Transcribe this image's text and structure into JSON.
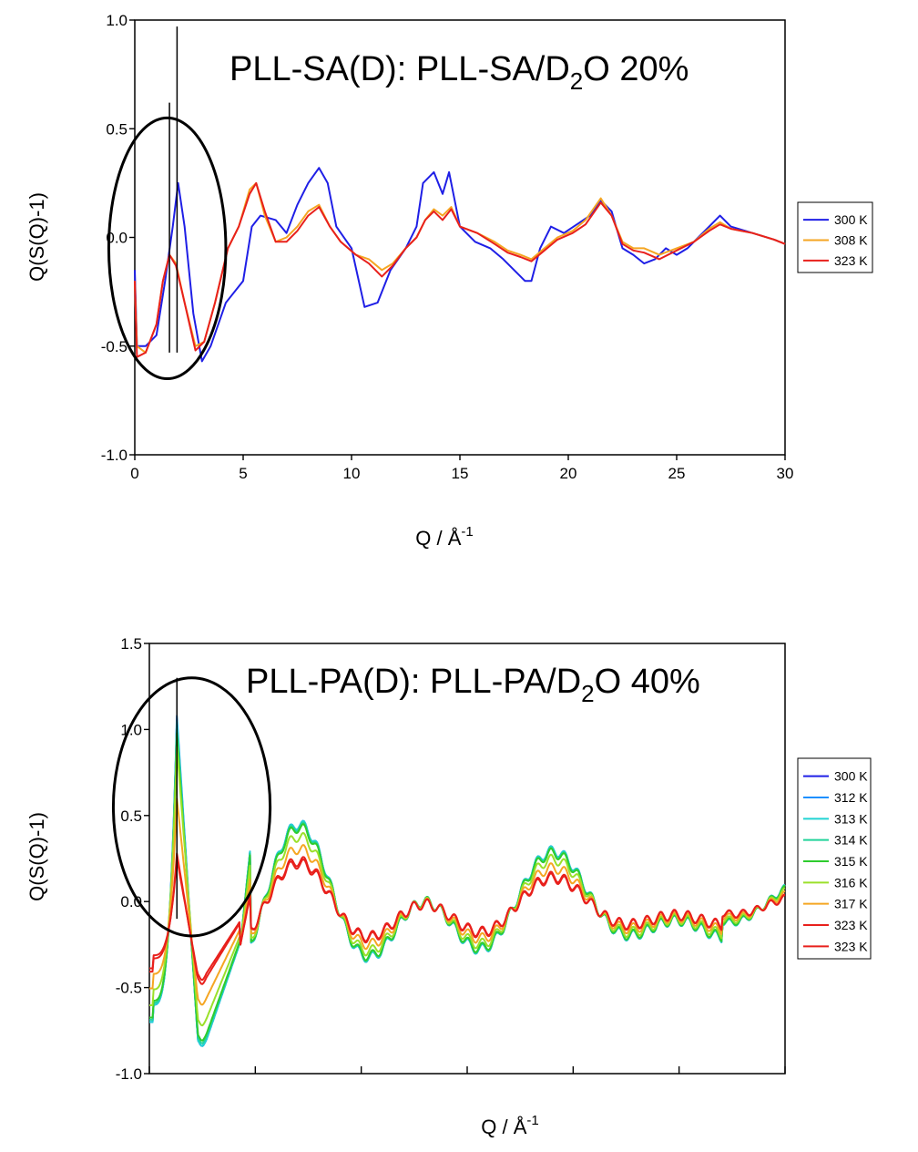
{
  "chart_data": [
    {
      "type": "line",
      "title_main": "PLL-SA(D): PLL-SA/D",
      "title_sub": "2",
      "title_tail": "O 20%",
      "xlabel": "Q / Å",
      "xlabel_sup": "-1",
      "ylabel": "Q(S(Q)-1)",
      "xlim": [
        0,
        30
      ],
      "ylim": [
        -1.0,
        1.0
      ],
      "xticks": [
        "0",
        "5",
        "10",
        "15",
        "20",
        "25",
        "30"
      ],
      "yticks": [
        "-1.0",
        "-0.5",
        "0.0",
        "0.5",
        "1.0"
      ],
      "legend_position": "right",
      "annotations": {
        "ellipse": {
          "cx": 1.5,
          "cy": -0.05,
          "rx": 2.7,
          "ry": 0.6
        },
        "vlines": [
          {
            "x": 1.6,
            "y0": -0.53,
            "y1": 0.62
          },
          {
            "x": 1.95,
            "y0": -0.53,
            "y1": 0.97
          }
        ]
      },
      "series": [
        {
          "name": "300 K",
          "color": "#1f1fe6",
          "points": [
            [
              0,
              -0.15
            ],
            [
              0.1,
              -0.5
            ],
            [
              0.5,
              -0.5
            ],
            [
              1.0,
              -0.45
            ],
            [
              1.4,
              -0.2
            ],
            [
              1.75,
              0.05
            ],
            [
              2.0,
              0.25
            ],
            [
              2.3,
              0.05
            ],
            [
              2.7,
              -0.35
            ],
            [
              3.1,
              -0.57
            ],
            [
              3.5,
              -0.5
            ],
            [
              4.2,
              -0.3
            ],
            [
              5.0,
              -0.2
            ],
            [
              5.4,
              0.05
            ],
            [
              5.8,
              0.1
            ],
            [
              6.5,
              0.08
            ],
            [
              7.0,
              0.02
            ],
            [
              7.5,
              0.15
            ],
            [
              8.0,
              0.25
            ],
            [
              8.5,
              0.32
            ],
            [
              8.9,
              0.25
            ],
            [
              9.3,
              0.05
            ],
            [
              10.0,
              -0.05
            ],
            [
              10.6,
              -0.32
            ],
            [
              11.2,
              -0.3
            ],
            [
              11.8,
              -0.15
            ],
            [
              12.5,
              -0.05
            ],
            [
              13.0,
              0.05
            ],
            [
              13.3,
              0.25
            ],
            [
              13.8,
              0.3
            ],
            [
              14.2,
              0.2
            ],
            [
              14.5,
              0.3
            ],
            [
              15.0,
              0.05
            ],
            [
              15.7,
              -0.02
            ],
            [
              16.4,
              -0.05
            ],
            [
              17.0,
              -0.1
            ],
            [
              17.5,
              -0.15
            ],
            [
              18.0,
              -0.2
            ],
            [
              18.3,
              -0.2
            ],
            [
              18.7,
              -0.05
            ],
            [
              19.2,
              0.05
            ],
            [
              19.8,
              0.02
            ],
            [
              20.4,
              0.06
            ],
            [
              21.0,
              0.1
            ],
            [
              21.5,
              0.17
            ],
            [
              22.0,
              0.12
            ],
            [
              22.5,
              -0.05
            ],
            [
              23.0,
              -0.08
            ],
            [
              23.5,
              -0.12
            ],
            [
              24.0,
              -0.1
            ],
            [
              24.5,
              -0.05
            ],
            [
              25.0,
              -0.08
            ],
            [
              25.5,
              -0.05
            ],
            [
              26.0,
              0.0
            ],
            [
              26.5,
              0.05
            ],
            [
              27.0,
              0.1
            ],
            [
              27.5,
              0.05
            ],
            [
              28.5,
              0.02
            ],
            [
              29.5,
              -0.01
            ],
            [
              30.0,
              -0.03
            ]
          ]
        },
        {
          "name": "308 K",
          "color": "#f5a623",
          "points": [
            [
              0,
              -0.2
            ],
            [
              0.1,
              -0.5
            ],
            [
              0.5,
              -0.53
            ],
            [
              1.0,
              -0.4
            ],
            [
              1.3,
              -0.2
            ],
            [
              1.6,
              -0.08
            ],
            [
              1.9,
              -0.12
            ],
            [
              2.3,
              -0.3
            ],
            [
              2.8,
              -0.5
            ],
            [
              3.2,
              -0.48
            ],
            [
              3.7,
              -0.3
            ],
            [
              4.3,
              -0.05
            ],
            [
              4.8,
              0.05
            ],
            [
              5.3,
              0.22
            ],
            [
              5.6,
              0.25
            ],
            [
              6.0,
              0.1
            ],
            [
              6.5,
              -0.02
            ],
            [
              7.0,
              0.0
            ],
            [
              7.5,
              0.05
            ],
            [
              8.0,
              0.12
            ],
            [
              8.5,
              0.15
            ],
            [
              9.0,
              0.05
            ],
            [
              9.5,
              -0.02
            ],
            [
              10.2,
              -0.08
            ],
            [
              10.8,
              -0.1
            ],
            [
              11.4,
              -0.15
            ],
            [
              11.9,
              -0.12
            ],
            [
              12.5,
              -0.05
            ],
            [
              13.0,
              0.0
            ],
            [
              13.4,
              0.08
            ],
            [
              13.8,
              0.13
            ],
            [
              14.2,
              0.1
            ],
            [
              14.6,
              0.14
            ],
            [
              15.0,
              0.05
            ],
            [
              15.8,
              0.02
            ],
            [
              16.6,
              -0.02
            ],
            [
              17.2,
              -0.06
            ],
            [
              17.8,
              -0.08
            ],
            [
              18.3,
              -0.1
            ],
            [
              18.9,
              -0.05
            ],
            [
              19.5,
              0.0
            ],
            [
              20.2,
              0.03
            ],
            [
              20.8,
              0.08
            ],
            [
              21.5,
              0.18
            ],
            [
              22.0,
              0.1
            ],
            [
              22.5,
              -0.02
            ],
            [
              23.0,
              -0.05
            ],
            [
              23.5,
              -0.05
            ],
            [
              24.2,
              -0.08
            ],
            [
              25.0,
              -0.05
            ],
            [
              25.8,
              -0.02
            ],
            [
              26.5,
              0.04
            ],
            [
              27.0,
              0.07
            ],
            [
              27.5,
              0.04
            ],
            [
              28.5,
              0.02
            ],
            [
              29.5,
              -0.01
            ],
            [
              30.0,
              -0.03
            ]
          ]
        },
        {
          "name": "323 K",
          "color": "#e8201c",
          "points": [
            [
              0,
              -0.2
            ],
            [
              0.1,
              -0.55
            ],
            [
              0.5,
              -0.53
            ],
            [
              1.0,
              -0.4
            ],
            [
              1.3,
              -0.2
            ],
            [
              1.6,
              -0.08
            ],
            [
              1.9,
              -0.13
            ],
            [
              2.3,
              -0.3
            ],
            [
              2.8,
              -0.52
            ],
            [
              3.2,
              -0.48
            ],
            [
              3.7,
              -0.3
            ],
            [
              4.3,
              -0.05
            ],
            [
              4.8,
              0.05
            ],
            [
              5.3,
              0.2
            ],
            [
              5.6,
              0.25
            ],
            [
              6.0,
              0.12
            ],
            [
              6.5,
              -0.02
            ],
            [
              7.0,
              -0.02
            ],
            [
              7.5,
              0.03
            ],
            [
              8.0,
              0.1
            ],
            [
              8.5,
              0.14
            ],
            [
              9.0,
              0.05
            ],
            [
              9.5,
              -0.02
            ],
            [
              10.2,
              -0.08
            ],
            [
              10.8,
              -0.12
            ],
            [
              11.4,
              -0.18
            ],
            [
              11.9,
              -0.13
            ],
            [
              12.5,
              -0.05
            ],
            [
              13.0,
              0.0
            ],
            [
              13.4,
              0.08
            ],
            [
              13.8,
              0.12
            ],
            [
              14.2,
              0.08
            ],
            [
              14.6,
              0.13
            ],
            [
              15.0,
              0.05
            ],
            [
              15.8,
              0.02
            ],
            [
              16.6,
              -0.03
            ],
            [
              17.2,
              -0.07
            ],
            [
              17.8,
              -0.09
            ],
            [
              18.3,
              -0.11
            ],
            [
              18.9,
              -0.06
            ],
            [
              19.5,
              -0.01
            ],
            [
              20.2,
              0.02
            ],
            [
              20.8,
              0.06
            ],
            [
              21.5,
              0.16
            ],
            [
              22.0,
              0.1
            ],
            [
              22.5,
              -0.03
            ],
            [
              23.0,
              -0.06
            ],
            [
              23.5,
              -0.07
            ],
            [
              24.2,
              -0.1
            ],
            [
              25.0,
              -0.06
            ],
            [
              25.8,
              -0.02
            ],
            [
              26.5,
              0.03
            ],
            [
              27.0,
              0.06
            ],
            [
              27.5,
              0.04
            ],
            [
              28.5,
              0.02
            ],
            [
              29.5,
              -0.01
            ],
            [
              30.0,
              -0.03
            ]
          ]
        }
      ]
    },
    {
      "type": "line",
      "title_main": "PLL-PA(D): PLL-PA/D",
      "title_sub": "2",
      "title_tail": "O 40%",
      "xlabel": "Q / Å",
      "xlabel_sup": "-1",
      "ylabel": "Q(S(Q)-1)",
      "xlim": [
        0,
        30
      ],
      "ylim": [
        -1.0,
        1.5
      ],
      "xticks": [],
      "xtick_positions": [
        0,
        5,
        10,
        15,
        20,
        25,
        30
      ],
      "yticks": [
        "-1.0",
        "-0.5",
        "0.0",
        "0.5",
        "1.0",
        "1.5"
      ],
      "legend_position": "right",
      "annotations": {
        "ellipse": {
          "cx": 2.0,
          "cy": 0.55,
          "rx": 3.7,
          "ry": 0.75
        },
        "vlines": [
          {
            "x": 1.3,
            "y0": -0.1,
            "y1": 1.3
          }
        ]
      },
      "series": [
        {
          "name": "300 K",
          "color": "#1f1fe6",
          "peak": 1.05,
          "amp": 1.0
        },
        {
          "name": "312 K",
          "color": "#1e90ff",
          "peak": 1.08,
          "amp": 1.0
        },
        {
          "name": "313 K",
          "color": "#22d3d3",
          "peak": 1.05,
          "amp": 1.0
        },
        {
          "name": "314 K",
          "color": "#22d39a",
          "peak": 1.0,
          "amp": 0.98
        },
        {
          "name": "315 K",
          "color": "#2ecc2e",
          "peak": 0.98,
          "amp": 0.96
        },
        {
          "name": "316 K",
          "color": "#9be02a",
          "peak": 0.9,
          "amp": 0.85
        },
        {
          "name": "317 K",
          "color": "#f5a623",
          "peak": 0.6,
          "amp": 0.7
        },
        {
          "name": "323 K",
          "color": "#e8201c",
          "peak": 0.28,
          "amp": 0.55
        },
        {
          "name": "323 K",
          "color": "#e8201c",
          "peak": 0.25,
          "amp": 0.52
        }
      ]
    }
  ]
}
